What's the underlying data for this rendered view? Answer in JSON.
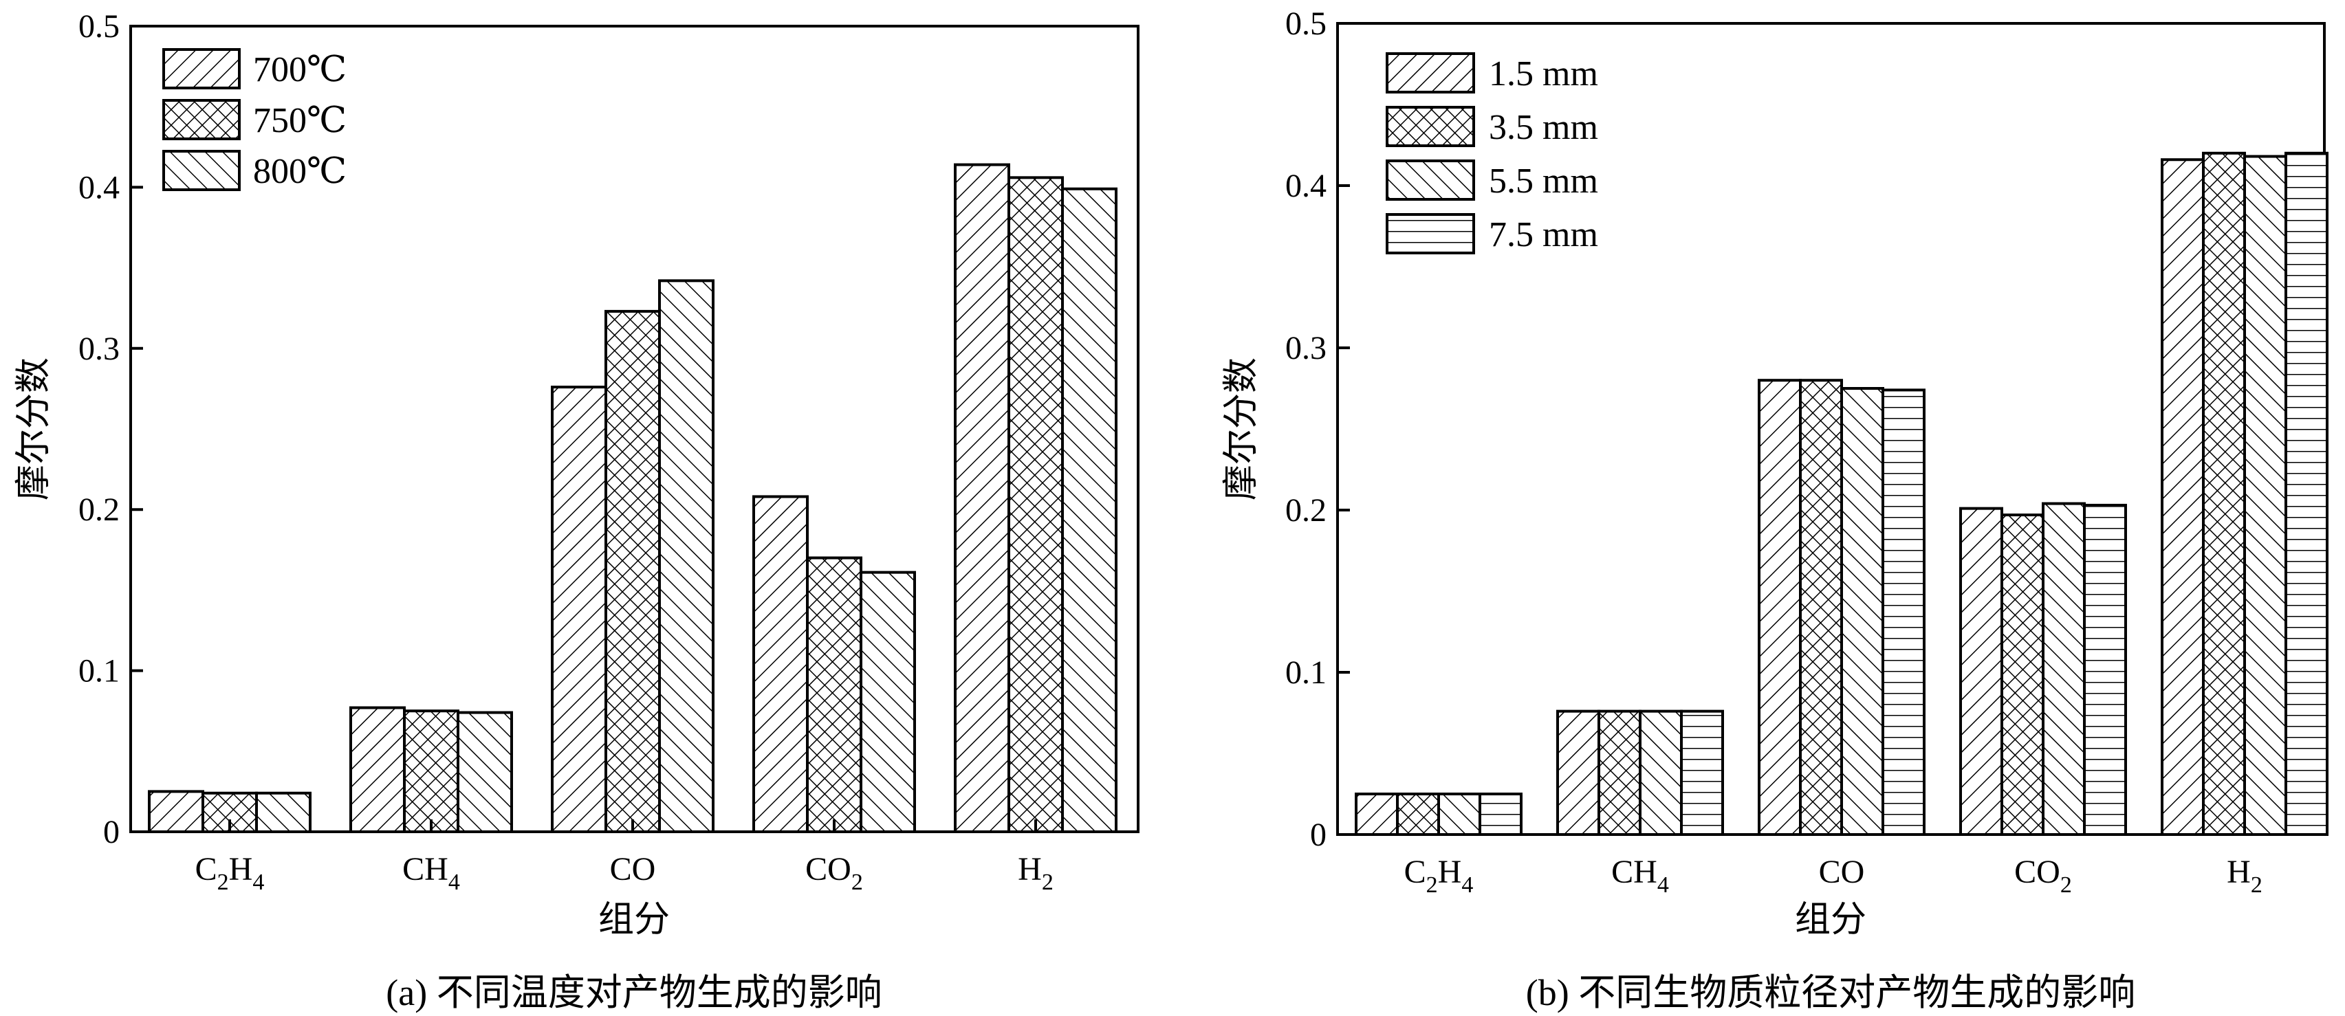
{
  "chart_data": [
    {
      "type": "bar",
      "caption": "(a) 不同温度对产物生成的影响",
      "xlabel": "组分",
      "ylabel": "摩尔分数",
      "ylim": [
        0,
        0.5
      ],
      "yticks": [
        "0",
        "0.1",
        "0.2",
        "0.3",
        "0.4",
        "0.5"
      ],
      "categories": [
        {
          "base": "C",
          "sub1": "2",
          "mid": "H",
          "sub2": "4"
        },
        {
          "base": "CH",
          "sub1": "4",
          "mid": "",
          "sub2": ""
        },
        {
          "base": "CO",
          "sub1": "",
          "mid": "",
          "sub2": ""
        },
        {
          "base": "CO",
          "sub1": "2",
          "mid": "",
          "sub2": ""
        },
        {
          "base": "H",
          "sub1": "2",
          "mid": "",
          "sub2": ""
        }
      ],
      "series": [
        {
          "name": "700℃",
          "pattern": "diag-right",
          "values": [
            0.025,
            0.077,
            0.276,
            0.208,
            0.414
          ]
        },
        {
          "name": "750℃",
          "pattern": "crosshatch",
          "values": [
            0.024,
            0.075,
            0.323,
            0.17,
            0.406
          ]
        },
        {
          "name": "800℃",
          "pattern": "diag-left",
          "values": [
            0.024,
            0.074,
            0.342,
            0.161,
            0.399
          ]
        }
      ],
      "legend_position": "top-left",
      "grid": false
    },
    {
      "type": "bar",
      "caption": "(b) 不同生物质粒径对产物生成的影响",
      "xlabel": "组分",
      "ylabel": "摩尔分数",
      "ylim": [
        0,
        0.5
      ],
      "yticks": [
        "0",
        "0.1",
        "0.2",
        "0.3",
        "0.4",
        "0.5"
      ],
      "categories": [
        {
          "base": "C",
          "sub1": "2",
          "mid": "H",
          "sub2": "4"
        },
        {
          "base": "CH",
          "sub1": "4",
          "mid": "",
          "sub2": ""
        },
        {
          "base": "CO",
          "sub1": "",
          "mid": "",
          "sub2": ""
        },
        {
          "base": "CO",
          "sub1": "2",
          "mid": "",
          "sub2": ""
        },
        {
          "base": "H",
          "sub1": "2",
          "mid": "",
          "sub2": ""
        }
      ],
      "series": [
        {
          "name": "1.5 mm",
          "pattern": "diag-right",
          "values": [
            0.025,
            0.076,
            0.28,
            0.201,
            0.416
          ]
        },
        {
          "name": "3.5 mm",
          "pattern": "crosshatch",
          "values": [
            0.025,
            0.076,
            0.28,
            0.197,
            0.42
          ]
        },
        {
          "name": "5.5 mm",
          "pattern": "diag-left",
          "values": [
            0.025,
            0.076,
            0.275,
            0.204,
            0.418
          ]
        },
        {
          "name": "7.5 mm",
          "pattern": "horizontal",
          "values": [
            0.025,
            0.076,
            0.274,
            0.203,
            0.42
          ]
        }
      ],
      "legend_position": "top-left",
      "grid": false
    }
  ]
}
